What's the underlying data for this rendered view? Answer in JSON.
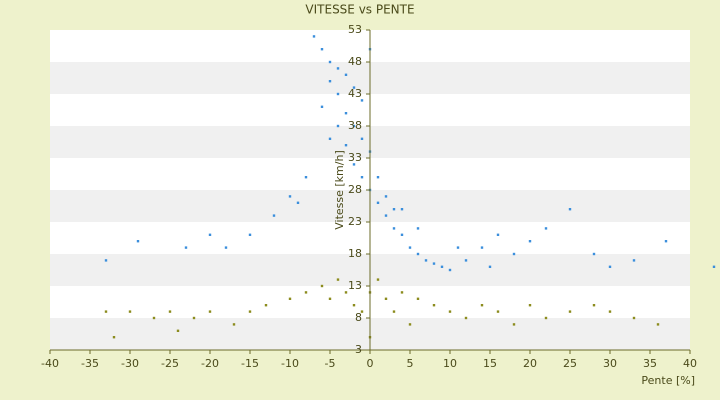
{
  "chart_data": {
    "type": "scatter",
    "title": "VITESSE vs PENTE",
    "x_label": "Pente [%]",
    "y_label": "Vitesse [km/h]",
    "xlim": [
      -40,
      40
    ],
    "xticks": [
      -40,
      -35,
      -30,
      -25,
      -20,
      -15,
      -10,
      -5,
      0,
      5,
      10,
      15,
      20,
      25,
      30,
      35,
      40
    ],
    "ylim": [
      3,
      53
    ],
    "yticks": [
      3,
      8,
      13,
      18,
      23,
      28,
      33,
      38,
      43,
      48,
      53
    ],
    "grid": true,
    "series": [
      {
        "color": "#3b8fdc",
        "x": [
          -7,
          -6,
          -5,
          -4,
          -3,
          -2,
          -1,
          0,
          -5,
          -4,
          -3,
          -6,
          -2,
          -1,
          0,
          1,
          2,
          3,
          -3,
          -2,
          -1,
          0,
          1,
          2,
          3,
          4,
          5,
          6,
          7,
          8,
          9,
          10,
          12,
          14,
          16,
          18,
          20,
          22,
          25,
          28,
          30,
          33,
          37,
          43,
          -10,
          -12,
          -15,
          -18,
          -20,
          -23,
          -29,
          -33,
          -8,
          -9,
          -4,
          -5,
          4,
          6,
          11,
          15
        ],
        "values": [
          52,
          50,
          48,
          47,
          46,
          44,
          42,
          50,
          45,
          43,
          40,
          41,
          38,
          36,
          34,
          30,
          27,
          25,
          35,
          32,
          30,
          28,
          26,
          24,
          22,
          21,
          19,
          18,
          17,
          16.5,
          16,
          15.5,
          17,
          19,
          21,
          18,
          20,
          22,
          25,
          18,
          16,
          17,
          20,
          16,
          27,
          24,
          21,
          19,
          21,
          19,
          20,
          17,
          30,
          26,
          38,
          36,
          25,
          22,
          19,
          16
        ]
      },
      {
        "color": "#8c8c1e",
        "x": [
          -32,
          -33,
          -30,
          -27,
          -25,
          -22,
          -20,
          -17,
          -15,
          -13,
          -10,
          -8,
          -6,
          -5,
          -4,
          -3,
          -2,
          -1,
          0,
          0,
          1,
          2,
          3,
          4,
          5,
          6,
          8,
          10,
          12,
          14,
          16,
          18,
          20,
          22,
          25,
          28,
          30,
          33,
          36,
          -24
        ],
        "values": [
          5,
          9,
          9,
          8,
          9,
          8,
          9,
          7,
          9,
          10,
          11,
          12,
          13,
          11,
          14,
          12,
          10,
          9,
          5,
          12,
          14,
          11,
          9,
          12,
          7,
          11,
          10,
          9,
          8,
          10,
          9,
          7,
          10,
          8,
          9,
          10,
          9,
          8,
          7,
          6
        ]
      }
    ]
  }
}
